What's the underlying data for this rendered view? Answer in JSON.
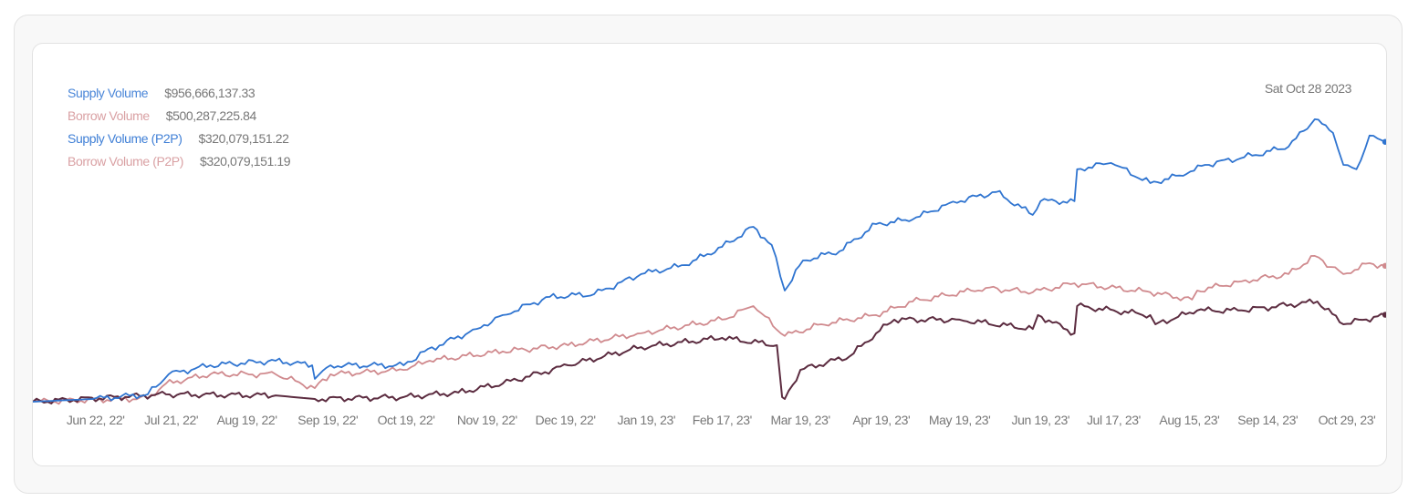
{
  "tooltip_date": "Sat Oct 28 2023",
  "legend": [
    {
      "label": "Supply Volume",
      "value": "$956,666,137.33",
      "color": "#4a86d8"
    },
    {
      "label": "Borrow Volume",
      "value": "$500,287,225.84",
      "color": "#d9a0a3"
    },
    {
      "label": "Supply Volume (P2P)",
      "value": "$320,079,151.22",
      "color": "#3f7fd6"
    },
    {
      "label": "Borrow Volume (P2P)",
      "value": "$320,079,151.19",
      "color": "#d9a0a3"
    }
  ],
  "chart_data": {
    "type": "line",
    "title": "",
    "xlabel": "",
    "ylabel": "",
    "y_units": "USD millions",
    "xlim": [
      "2022-05-29",
      "2023-10-29"
    ],
    "ylim": [
      0,
      1100
    ],
    "grid": false,
    "y_axis_visible": false,
    "x_ticks": [
      {
        "date": "2022-06-22",
        "label": "Jun 22, 22'"
      },
      {
        "date": "2022-07-21",
        "label": "Jul 21, 22'"
      },
      {
        "date": "2022-08-19",
        "label": "Aug 19, 22'"
      },
      {
        "date": "2022-09-19",
        "label": "Sep 19, 22'"
      },
      {
        "date": "2022-10-19",
        "label": "Oct 19, 22'"
      },
      {
        "date": "2022-11-19",
        "label": "Nov 19, 22'"
      },
      {
        "date": "2022-12-19",
        "label": "Dec 19, 22'"
      },
      {
        "date": "2023-01-19",
        "label": "Jan 19, 23'"
      },
      {
        "date": "2023-02-17",
        "label": "Feb 17, 23'"
      },
      {
        "date": "2023-03-19",
        "label": "Mar 19, 23'"
      },
      {
        "date": "2023-04-19",
        "label": "Apr 19, 23'"
      },
      {
        "date": "2023-05-19",
        "label": "May 19, 23'"
      },
      {
        "date": "2023-06-19",
        "label": "Jun 19, 23'"
      },
      {
        "date": "2023-07-17",
        "label": "Jul 17, 23'"
      },
      {
        "date": "2023-08-15",
        "label": "Aug 15, 23'"
      },
      {
        "date": "2023-09-14",
        "label": "Sep 14, 23'"
      },
      {
        "date": "2023-10-29",
        "label": "Oct 29, 23'"
      }
    ],
    "series": [
      {
        "name": "Supply Volume",
        "color": "#2f74d0",
        "points": [
          [
            "2022-05-29",
            0
          ],
          [
            "2022-06-21",
            10
          ],
          [
            "2022-07-12",
            27
          ],
          [
            "2022-07-20",
            101
          ],
          [
            "2022-08-05",
            134
          ],
          [
            "2022-08-30",
            151
          ],
          [
            "2022-09-13",
            134
          ],
          [
            "2022-09-14",
            84
          ],
          [
            "2022-09-20",
            134
          ],
          [
            "2022-10-18",
            134
          ],
          [
            "2022-10-26",
            185
          ],
          [
            "2022-11-15",
            268
          ],
          [
            "2022-11-25",
            319
          ],
          [
            "2022-12-13",
            386
          ],
          [
            "2022-12-30",
            396
          ],
          [
            "2023-01-17",
            470
          ],
          [
            "2023-02-03",
            503
          ],
          [
            "2023-02-17",
            570
          ],
          [
            "2023-03-01",
            644
          ],
          [
            "2023-03-08",
            577
          ],
          [
            "2023-03-13",
            409
          ],
          [
            "2023-03-20",
            520
          ],
          [
            "2023-04-03",
            554
          ],
          [
            "2023-04-17",
            654
          ],
          [
            "2023-05-01",
            671
          ],
          [
            "2023-05-15",
            731
          ],
          [
            "2023-06-02",
            772
          ],
          [
            "2023-06-16",
            688
          ],
          [
            "2023-06-19",
            738
          ],
          [
            "2023-07-02",
            738
          ],
          [
            "2023-07-03",
            856
          ],
          [
            "2023-07-16",
            879
          ],
          [
            "2023-07-31",
            805
          ],
          [
            "2023-08-14",
            839
          ],
          [
            "2023-08-21",
            872
          ],
          [
            "2023-09-08",
            906
          ],
          [
            "2023-09-22",
            939
          ],
          [
            "2023-10-02",
            1040
          ],
          [
            "2023-10-09",
            990
          ],
          [
            "2023-10-13",
            872
          ],
          [
            "2023-10-18",
            856
          ],
          [
            "2023-10-23",
            980
          ],
          [
            "2023-10-29",
            956.67
          ]
        ]
      },
      {
        "name": "Borrow Volume",
        "color": "#d08a8e",
        "points": [
          [
            "2022-05-29",
            0
          ],
          [
            "2022-07-12",
            13
          ],
          [
            "2022-07-19",
            67
          ],
          [
            "2022-08-05",
            101
          ],
          [
            "2022-08-30",
            101
          ],
          [
            "2022-09-14",
            50
          ],
          [
            "2022-09-20",
            101
          ],
          [
            "2022-10-18",
            117
          ],
          [
            "2022-10-28",
            151
          ],
          [
            "2022-11-25",
            185
          ],
          [
            "2022-12-20",
            208
          ],
          [
            "2023-01-17",
            252
          ],
          [
            "2023-02-17",
            302
          ],
          [
            "2023-03-01",
            352
          ],
          [
            "2023-03-13",
            242
          ],
          [
            "2023-03-27",
            285
          ],
          [
            "2023-04-17",
            319
          ],
          [
            "2023-05-01",
            369
          ],
          [
            "2023-05-29",
            419
          ],
          [
            "2023-06-16",
            403
          ],
          [
            "2023-07-02",
            436
          ],
          [
            "2023-07-31",
            403
          ],
          [
            "2023-08-16",
            376
          ],
          [
            "2023-08-18",
            409
          ],
          [
            "2023-09-04",
            443
          ],
          [
            "2023-09-22",
            470
          ],
          [
            "2023-10-02",
            537
          ],
          [
            "2023-10-13",
            470
          ],
          [
            "2023-10-23",
            510
          ],
          [
            "2023-10-29",
            500.29
          ]
        ]
      },
      {
        "name": "Borrow Volume (P2P)",
        "color": "#5c2c40",
        "points": [
          [
            "2022-05-29",
            0
          ],
          [
            "2022-07-19",
            27
          ],
          [
            "2022-08-30",
            23
          ],
          [
            "2022-09-14",
            10
          ],
          [
            "2022-10-18",
            17
          ],
          [
            "2022-11-08",
            34
          ],
          [
            "2022-11-25",
            67
          ],
          [
            "2022-12-20",
            134
          ],
          [
            "2023-01-17",
            201
          ],
          [
            "2023-02-17",
            235
          ],
          [
            "2023-03-10",
            208
          ],
          [
            "2023-03-12",
            17
          ],
          [
            "2023-03-13",
            10
          ],
          [
            "2023-03-19",
            117
          ],
          [
            "2023-04-07",
            168
          ],
          [
            "2023-04-17",
            252
          ],
          [
            "2023-04-24",
            302
          ],
          [
            "2023-05-19",
            302
          ],
          [
            "2023-06-16",
            268
          ],
          [
            "2023-06-18",
            319
          ],
          [
            "2023-07-02",
            252
          ],
          [
            "2023-07-03",
            352
          ],
          [
            "2023-07-31",
            319
          ],
          [
            "2023-08-02",
            285
          ],
          [
            "2023-08-18",
            336
          ],
          [
            "2023-09-04",
            336
          ],
          [
            "2023-10-03",
            369
          ],
          [
            "2023-10-13",
            285
          ],
          [
            "2023-10-29",
            320.08
          ]
        ]
      }
    ]
  }
}
